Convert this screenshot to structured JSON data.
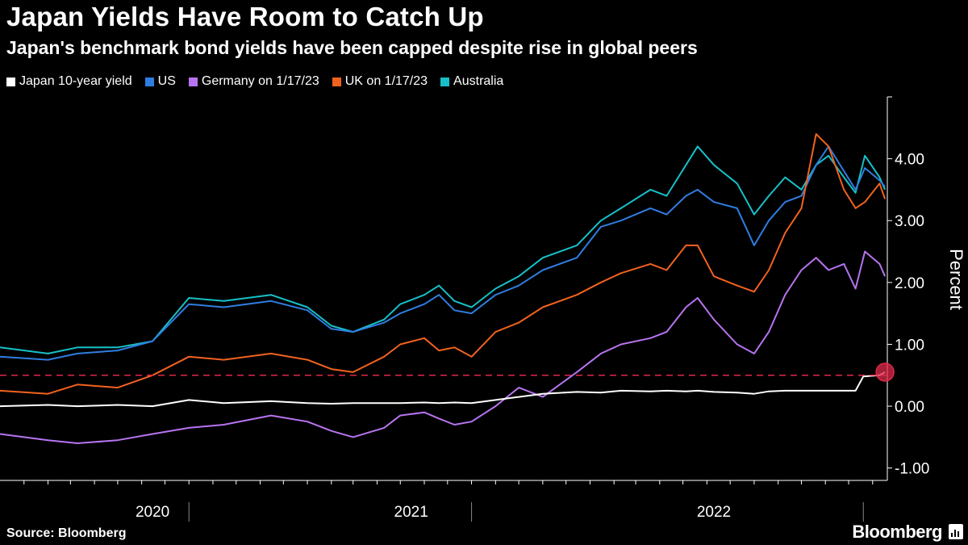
{
  "header": {
    "title": "Japan Yields Have Room to Catch Up",
    "subtitle": "Japan's benchmark bond yields have been capped despite rise in global peers"
  },
  "footer": {
    "source": "Source: Bloomberg",
    "brand": "Bloomberg"
  },
  "icons": {
    "brand_icon": "bar-chart-icon"
  },
  "chart_data": {
    "type": "line",
    "ylabel": "Percent",
    "ylim": [
      -1.2,
      5.0
    ],
    "yticks": [
      -1,
      0,
      1,
      2,
      3,
      4
    ],
    "ytick_labels": [
      "-1.00",
      "0.00",
      "1.00",
      "2.00",
      "3.00",
      "4.00"
    ],
    "xlim": [
      "2019-12-01",
      "2023-01-20"
    ],
    "year_labels": [
      {
        "label": "2020",
        "center": "2020-06-15"
      },
      {
        "label": "2021",
        "center": "2021-05-15"
      },
      {
        "label": "2022",
        "center": "2022-06-10"
      }
    ],
    "year_boundaries": [
      "2020-08-01",
      "2021-08-01",
      "2022-12-20"
    ],
    "reference_line": {
      "value": 0.5,
      "color": "#e0294a",
      "style": "dashed"
    },
    "marker": {
      "date": "2023-01-17",
      "value": 0.55,
      "color": "#e0294a"
    },
    "legend_position": "top-left",
    "series": [
      {
        "name": "Australia",
        "color": "#17c0c8",
        "points": [
          [
            "2019-12-01",
            0.95
          ],
          [
            "2020-02-01",
            0.85
          ],
          [
            "2020-03-10",
            0.95
          ],
          [
            "2020-05-01",
            0.95
          ],
          [
            "2020-06-15",
            1.05
          ],
          [
            "2020-08-01",
            1.75
          ],
          [
            "2020-09-15",
            1.7
          ],
          [
            "2020-11-15",
            1.8
          ],
          [
            "2021-01-01",
            1.6
          ],
          [
            "2021-02-01",
            1.3
          ],
          [
            "2021-03-01",
            1.2
          ],
          [
            "2021-04-10",
            1.4
          ],
          [
            "2021-05-01",
            1.65
          ],
          [
            "2021-06-01",
            1.8
          ],
          [
            "2021-06-20",
            1.95
          ],
          [
            "2021-07-10",
            1.7
          ],
          [
            "2021-08-01",
            1.6
          ],
          [
            "2021-09-01",
            1.9
          ],
          [
            "2021-10-01",
            2.1
          ],
          [
            "2021-11-01",
            2.4
          ],
          [
            "2021-12-15",
            2.6
          ],
          [
            "2022-01-15",
            3.0
          ],
          [
            "2022-02-10",
            3.2
          ],
          [
            "2022-03-20",
            3.5
          ],
          [
            "2022-04-10",
            3.4
          ],
          [
            "2022-05-05",
            3.9
          ],
          [
            "2022-05-20",
            4.2
          ],
          [
            "2022-06-10",
            3.9
          ],
          [
            "2022-07-10",
            3.6
          ],
          [
            "2022-08-01",
            3.1
          ],
          [
            "2022-08-20",
            3.4
          ],
          [
            "2022-09-10",
            3.7
          ],
          [
            "2022-10-01",
            3.5
          ],
          [
            "2022-10-20",
            3.9
          ],
          [
            "2022-11-05",
            4.05
          ],
          [
            "2022-11-25",
            3.7
          ],
          [
            "2022-12-10",
            3.45
          ],
          [
            "2022-12-22",
            4.05
          ],
          [
            "2023-01-10",
            3.7
          ],
          [
            "2023-01-17",
            3.5
          ]
        ]
      },
      {
        "name": "US",
        "color": "#2f7de0",
        "points": [
          [
            "2019-12-01",
            0.8
          ],
          [
            "2020-02-01",
            0.75
          ],
          [
            "2020-03-10",
            0.85
          ],
          [
            "2020-05-01",
            0.9
          ],
          [
            "2020-06-15",
            1.05
          ],
          [
            "2020-08-01",
            1.65
          ],
          [
            "2020-09-15",
            1.6
          ],
          [
            "2020-11-15",
            1.7
          ],
          [
            "2021-01-01",
            1.55
          ],
          [
            "2021-02-01",
            1.25
          ],
          [
            "2021-03-01",
            1.2
          ],
          [
            "2021-04-10",
            1.35
          ],
          [
            "2021-05-01",
            1.5
          ],
          [
            "2021-06-01",
            1.65
          ],
          [
            "2021-06-20",
            1.8
          ],
          [
            "2021-07-10",
            1.55
          ],
          [
            "2021-08-01",
            1.5
          ],
          [
            "2021-09-01",
            1.8
          ],
          [
            "2021-10-01",
            1.95
          ],
          [
            "2021-11-01",
            2.2
          ],
          [
            "2021-12-15",
            2.4
          ],
          [
            "2022-01-15",
            2.9
          ],
          [
            "2022-02-10",
            3.0
          ],
          [
            "2022-03-20",
            3.2
          ],
          [
            "2022-04-10",
            3.1
          ],
          [
            "2022-05-05",
            3.4
          ],
          [
            "2022-05-20",
            3.5
          ],
          [
            "2022-06-10",
            3.3
          ],
          [
            "2022-07-10",
            3.2
          ],
          [
            "2022-08-01",
            2.6
          ],
          [
            "2022-08-20",
            3.0
          ],
          [
            "2022-09-10",
            3.3
          ],
          [
            "2022-10-01",
            3.4
          ],
          [
            "2022-10-20",
            3.9
          ],
          [
            "2022-11-05",
            4.2
          ],
          [
            "2022-11-25",
            3.8
          ],
          [
            "2022-12-10",
            3.5
          ],
          [
            "2022-12-22",
            3.85
          ],
          [
            "2023-01-10",
            3.65
          ],
          [
            "2023-01-17",
            3.55
          ]
        ]
      },
      {
        "name": "UK on 1/17/23",
        "color": "#f2621f",
        "points": [
          [
            "2019-12-01",
            0.25
          ],
          [
            "2020-02-01",
            0.2
          ],
          [
            "2020-03-10",
            0.35
          ],
          [
            "2020-05-01",
            0.3
          ],
          [
            "2020-06-15",
            0.5
          ],
          [
            "2020-08-01",
            0.8
          ],
          [
            "2020-09-15",
            0.75
          ],
          [
            "2020-11-15",
            0.85
          ],
          [
            "2021-01-01",
            0.75
          ],
          [
            "2021-02-01",
            0.6
          ],
          [
            "2021-03-01",
            0.55
          ],
          [
            "2021-04-10",
            0.8
          ],
          [
            "2021-05-01",
            1.0
          ],
          [
            "2021-06-01",
            1.1
          ],
          [
            "2021-06-20",
            0.9
          ],
          [
            "2021-07-10",
            0.95
          ],
          [
            "2021-08-01",
            0.8
          ],
          [
            "2021-09-01",
            1.2
          ],
          [
            "2021-10-01",
            1.35
          ],
          [
            "2021-11-01",
            1.6
          ],
          [
            "2021-12-15",
            1.8
          ],
          [
            "2022-01-15",
            2.0
          ],
          [
            "2022-02-10",
            2.15
          ],
          [
            "2022-03-20",
            2.3
          ],
          [
            "2022-04-10",
            2.2
          ],
          [
            "2022-05-05",
            2.6
          ],
          [
            "2022-05-20",
            2.6
          ],
          [
            "2022-06-10",
            2.1
          ],
          [
            "2022-07-10",
            1.95
          ],
          [
            "2022-08-01",
            1.85
          ],
          [
            "2022-08-20",
            2.2
          ],
          [
            "2022-09-10",
            2.8
          ],
          [
            "2022-10-01",
            3.2
          ],
          [
            "2022-10-20",
            4.4
          ],
          [
            "2022-11-05",
            4.2
          ],
          [
            "2022-11-25",
            3.5
          ],
          [
            "2022-12-10",
            3.2
          ],
          [
            "2022-12-22",
            3.3
          ],
          [
            "2023-01-10",
            3.6
          ],
          [
            "2023-01-17",
            3.35
          ]
        ]
      },
      {
        "name": "Germany on 1/17/23",
        "color": "#b774f0",
        "points": [
          [
            "2019-12-01",
            -0.45
          ],
          [
            "2020-02-01",
            -0.55
          ],
          [
            "2020-03-10",
            -0.6
          ],
          [
            "2020-05-01",
            -0.55
          ],
          [
            "2020-06-15",
            -0.45
          ],
          [
            "2020-08-01",
            -0.35
          ],
          [
            "2020-09-15",
            -0.3
          ],
          [
            "2020-11-15",
            -0.15
          ],
          [
            "2021-01-01",
            -0.25
          ],
          [
            "2021-02-01",
            -0.4
          ],
          [
            "2021-03-01",
            -0.5
          ],
          [
            "2021-04-10",
            -0.35
          ],
          [
            "2021-05-01",
            -0.15
          ],
          [
            "2021-06-01",
            -0.1
          ],
          [
            "2021-06-20",
            -0.2
          ],
          [
            "2021-07-10",
            -0.3
          ],
          [
            "2021-08-01",
            -0.25
          ],
          [
            "2021-09-01",
            0.0
          ],
          [
            "2021-10-01",
            0.3
          ],
          [
            "2021-11-01",
            0.15
          ],
          [
            "2021-12-15",
            0.55
          ],
          [
            "2022-01-15",
            0.85
          ],
          [
            "2022-02-10",
            1.0
          ],
          [
            "2022-03-20",
            1.1
          ],
          [
            "2022-04-10",
            1.2
          ],
          [
            "2022-05-05",
            1.6
          ],
          [
            "2022-05-20",
            1.75
          ],
          [
            "2022-06-10",
            1.4
          ],
          [
            "2022-07-10",
            1.0
          ],
          [
            "2022-08-01",
            0.85
          ],
          [
            "2022-08-20",
            1.2
          ],
          [
            "2022-09-10",
            1.8
          ],
          [
            "2022-10-01",
            2.2
          ],
          [
            "2022-10-20",
            2.4
          ],
          [
            "2022-11-05",
            2.2
          ],
          [
            "2022-11-25",
            2.3
          ],
          [
            "2022-12-10",
            1.9
          ],
          [
            "2022-12-22",
            2.5
          ],
          [
            "2023-01-10",
            2.3
          ],
          [
            "2023-01-17",
            2.1
          ]
        ]
      },
      {
        "name": "Japan 10-year yield",
        "color": "#ffffff",
        "points": [
          [
            "2019-12-01",
            0.0
          ],
          [
            "2020-02-01",
            0.02
          ],
          [
            "2020-03-10",
            0.0
          ],
          [
            "2020-05-01",
            0.02
          ],
          [
            "2020-06-15",
            0.0
          ],
          [
            "2020-08-01",
            0.1
          ],
          [
            "2020-09-15",
            0.05
          ],
          [
            "2020-11-15",
            0.08
          ],
          [
            "2021-01-01",
            0.05
          ],
          [
            "2021-02-01",
            0.04
          ],
          [
            "2021-03-01",
            0.05
          ],
          [
            "2021-04-10",
            0.05
          ],
          [
            "2021-05-01",
            0.05
          ],
          [
            "2021-06-01",
            0.06
          ],
          [
            "2021-06-20",
            0.05
          ],
          [
            "2021-07-10",
            0.06
          ],
          [
            "2021-08-01",
            0.05
          ],
          [
            "2021-09-01",
            0.1
          ],
          [
            "2021-10-01",
            0.15
          ],
          [
            "2021-11-01",
            0.2
          ],
          [
            "2021-12-15",
            0.23
          ],
          [
            "2022-01-15",
            0.22
          ],
          [
            "2022-02-10",
            0.25
          ],
          [
            "2022-03-20",
            0.24
          ],
          [
            "2022-04-10",
            0.25
          ],
          [
            "2022-05-05",
            0.24
          ],
          [
            "2022-05-20",
            0.25
          ],
          [
            "2022-06-10",
            0.23
          ],
          [
            "2022-07-10",
            0.22
          ],
          [
            "2022-08-01",
            0.2
          ],
          [
            "2022-08-20",
            0.24
          ],
          [
            "2022-09-10",
            0.25
          ],
          [
            "2022-10-01",
            0.25
          ],
          [
            "2022-10-20",
            0.25
          ],
          [
            "2022-11-05",
            0.25
          ],
          [
            "2022-11-25",
            0.25
          ],
          [
            "2022-12-10",
            0.25
          ],
          [
            "2022-12-20",
            0.48
          ],
          [
            "2023-01-10",
            0.5
          ],
          [
            "2023-01-17",
            0.55
          ]
        ]
      }
    ]
  }
}
